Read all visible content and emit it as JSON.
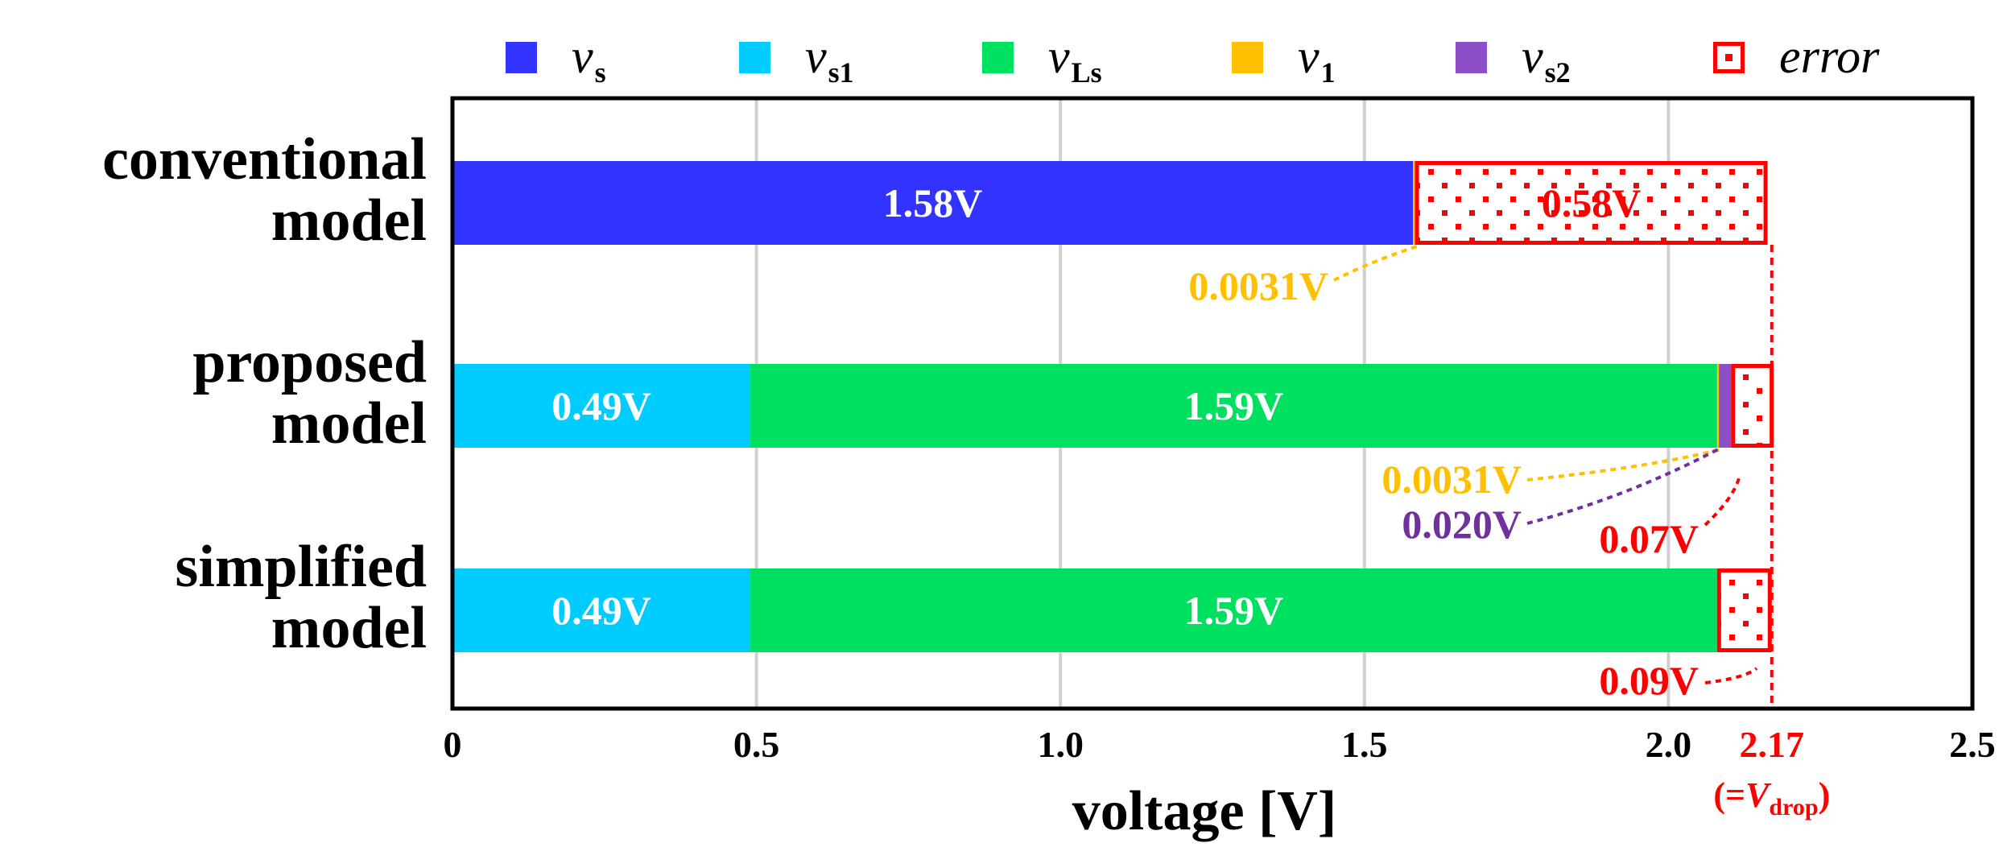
{
  "chart_data": {
    "type": "bar",
    "orientation": "horizontal",
    "stacked": true,
    "xlabel": "voltage [V]",
    "xlim": [
      0,
      2.5
    ],
    "xticks": [
      "0",
      "0.5",
      "1.0",
      "1.5",
      "2.0",
      "2.5"
    ],
    "grid": true,
    "legend_position": "top",
    "categories": [
      [
        "conventional",
        "model"
      ],
      [
        "proposed",
        "model"
      ],
      [
        "simplified",
        "model"
      ]
    ],
    "series": [
      {
        "name": "v",
        "sub": "s",
        "color": "#3333ff",
        "values": [
          1.58,
          0,
          0
        ],
        "labels": [
          "1.58V",
          "",
          ""
        ]
      },
      {
        "name": "v",
        "sub": "s1",
        "color": "#00ccff",
        "values": [
          0,
          0.49,
          0.49
        ],
        "labels": [
          "",
          "0.49V",
          "0.49V"
        ]
      },
      {
        "name": "v",
        "sub": "Ls",
        "color": "#00e060",
        "values": [
          0,
          1.59,
          1.59
        ],
        "labels": [
          "",
          "1.59V",
          "1.59V"
        ]
      },
      {
        "name": "v",
        "sub": "1",
        "color": "#ffc000",
        "values": [
          0.0031,
          0.0031,
          0
        ],
        "labels": [
          "",
          "",
          ""
        ]
      },
      {
        "name": "v",
        "sub": "s2",
        "color": "#8c4fc7",
        "values": [
          0,
          0.02,
          0
        ],
        "labels": [
          "",
          "",
          ""
        ]
      },
      {
        "name": "error",
        "sub": "",
        "color": "#ff0000",
        "pattern": "dotted",
        "values": [
          0.58,
          0.07,
          0.09
        ],
        "labels": [
          "0.58V",
          "",
          ""
        ]
      }
    ],
    "reference": {
      "value": 2.17,
      "label": "2.17",
      "sublabel_prefix": "(=",
      "sublabel_var": "V",
      "sublabel_sub": "drop",
      "sublabel_suffix": ")",
      "color": "#ff0000"
    },
    "callouts": [
      {
        "text": "0.0031V",
        "color": "#ffc000",
        "category": 0
      },
      {
        "text": "0.0031V",
        "color": "#ffc000",
        "category": 1
      },
      {
        "text": "0.020V",
        "color": "#7030a0",
        "category": 1
      },
      {
        "text": "0.07V",
        "color": "#ff0000",
        "category": 1
      },
      {
        "text": "0.09V",
        "color": "#ff0000",
        "category": 2
      }
    ]
  }
}
